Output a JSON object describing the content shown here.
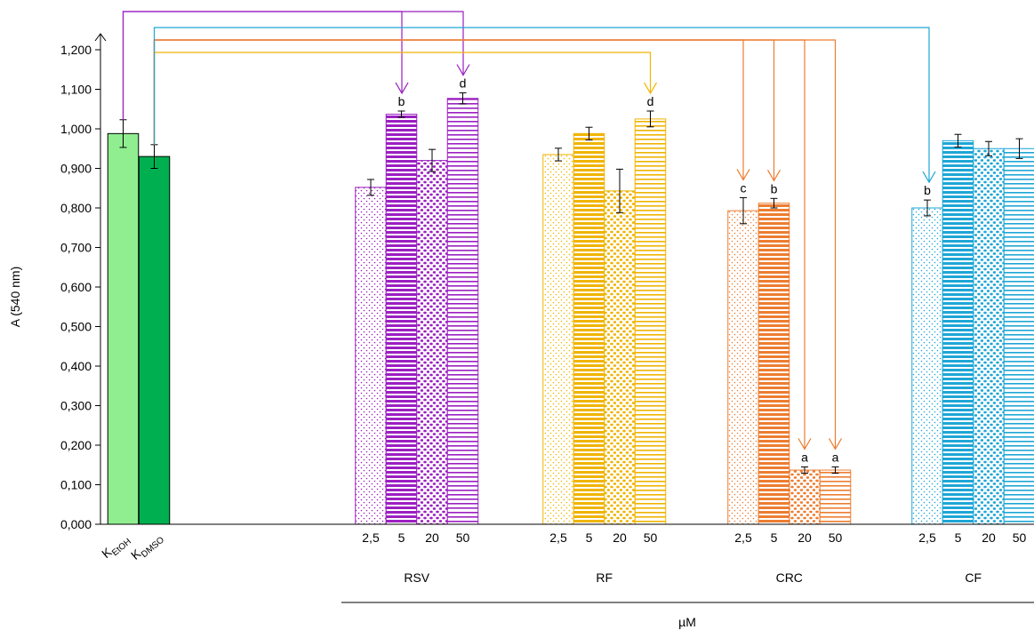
{
  "chart_data": {
    "type": "bar",
    "ylabel": "A (540 nm)",
    "xlabel": "µM",
    "ylim": [
      0,
      1.2
    ],
    "yticks": [
      "0,000",
      "0,100",
      "0,200",
      "0,300",
      "0,400",
      "0,500",
      "0,600",
      "0,700",
      "0,800",
      "0,900",
      "1,000",
      "1,100",
      "1,200"
    ],
    "controls": [
      {
        "main": "K",
        "sub": "EtOH",
        "value": 0.988,
        "err": 0.035,
        "fill": "#90ee90"
      },
      {
        "main": "K",
        "sub": "DMSO",
        "value": 0.93,
        "err": 0.03,
        "fill": "#00b050"
      }
    ],
    "groups": [
      {
        "name": "RSV",
        "color": "#9b1fc1",
        "concentrations": [
          "2,5",
          "5",
          "20",
          "50"
        ],
        "values": [
          0.852,
          1.037,
          0.92,
          1.077
        ],
        "errors": [
          0.02,
          0.008,
          0.028,
          0.014
        ],
        "letters": [
          "",
          "b",
          "",
          "d"
        ]
      },
      {
        "name": "RF",
        "color": "#f0b400",
        "concentrations": [
          "2,5",
          "5",
          "20",
          "50"
        ],
        "values": [
          0.935,
          0.988,
          0.843,
          1.025
        ],
        "errors": [
          0.016,
          0.016,
          0.055,
          0.02
        ],
        "letters": [
          "",
          "",
          "",
          "d"
        ]
      },
      {
        "name": "CRC",
        "color": "#ed7d31",
        "concentrations": [
          "2,5",
          "5",
          "20",
          "50"
        ],
        "values": [
          0.793,
          0.812,
          0.137,
          0.137
        ],
        "errors": [
          0.033,
          0.012,
          0.008,
          0.008
        ],
        "letters": [
          "c",
          "b",
          "a",
          "a"
        ]
      },
      {
        "name": "CF",
        "color": "#1ea6d6",
        "concentrations": [
          "2,5",
          "5",
          "20",
          "50"
        ],
        "values": [
          0.8,
          0.97,
          0.95,
          0.95
        ],
        "errors": [
          0.02,
          0.016,
          0.018,
          0.025
        ],
        "letters": [
          "b",
          "",
          "",
          ""
        ]
      }
    ],
    "comparisons": [
      {
        "from": "K_EtOH",
        "to": "RSV 5",
        "color": "#9b1fc1"
      },
      {
        "from": "K_EtOH",
        "to": "RSV 50",
        "color": "#9b1fc1"
      },
      {
        "from": "K_DMSO",
        "to": "RF 50",
        "color": "#f0b400"
      },
      {
        "from": "K_DMSO",
        "to": "CRC 2,5",
        "color": "#ed7d31"
      },
      {
        "from": "K_DMSO",
        "to": "CRC 5",
        "color": "#ed7d31"
      },
      {
        "from": "K_DMSO",
        "to": "CRC 20",
        "color": "#ed7d31"
      },
      {
        "from": "K_DMSO",
        "to": "CRC 50",
        "color": "#ed7d31"
      },
      {
        "from": "K_DMSO",
        "to": "CF 2,5",
        "color": "#1ea6d6"
      }
    ],
    "grid": false,
    "legend": "none"
  }
}
